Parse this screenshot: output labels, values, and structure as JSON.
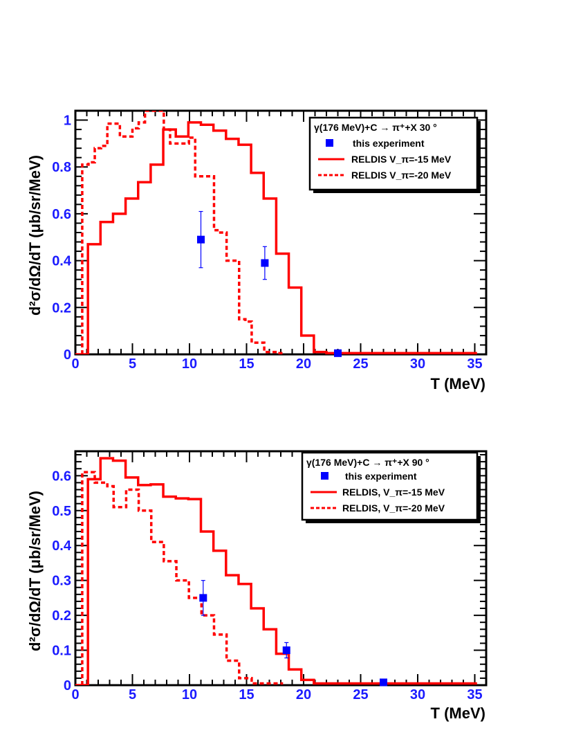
{
  "chart_data": [
    {
      "type": "line",
      "panel": "top",
      "xlabel": "T (MeV)",
      "ylabel": "d²σ/dΩ/dT (μb/sr/MeV)",
      "xlim": [
        0,
        36
      ],
      "ylim": [
        0,
        1.04
      ],
      "x_ticks": [
        "0",
        "5",
        "10",
        "15",
        "20",
        "25",
        "30",
        "35"
      ],
      "y_ticks": [
        "0",
        "0.2",
        "0.4",
        "0.6",
        "0.8",
        "1"
      ],
      "y_tick_values": [
        0,
        0.2,
        0.4,
        0.6,
        0.8,
        1
      ],
      "legend": {
        "title": "γ(176 MeV)+C → π⁺+X   30  °",
        "placement": "top-right",
        "entries": [
          "this experiment",
          "RELDIS V_π=-15 MeV",
          "RELDIS V_π=-20 MeV"
        ]
      },
      "series": [
        {
          "name": "RELDIS V_π=-15 MeV",
          "style": "solid",
          "color": "#ff0000",
          "bin_width": 1.1,
          "start": 0,
          "values": [
            0,
            0.47,
            0.565,
            0.6,
            0.665,
            0.735,
            0.81,
            0.96,
            0.93,
            0.99,
            0.98,
            0.955,
            0.92,
            0.895,
            0.775,
            0.665,
            0.43,
            0.285,
            0.08,
            0.01,
            0.005,
            0.005,
            0.005,
            0.005,
            0.005,
            0.005,
            0.005,
            0.005,
            0.005,
            0.005,
            0.005,
            0.005
          ]
        },
        {
          "name": "RELDIS V_π=-20 MeV",
          "style": "dashed",
          "color": "#ff0000",
          "bin_width": 0.55,
          "start": 0.6,
          "values": [
            0.81,
            0.82,
            0.88,
            0.89,
            0.985,
            0.985,
            0.93,
            0.93,
            0.965,
            0.99,
            1.04,
            1.04,
            1.04,
            0.96,
            0.9,
            0.9,
            0.9,
            0.925,
            0.76,
            0.76,
            0.76,
            0.53,
            0.52,
            0.4,
            0.4,
            0.15,
            0.14,
            0.05,
            0.05,
            0.01,
            0.01,
            0.005
          ]
        },
        {
          "name": "this experiment",
          "style": "marker",
          "color": "#0000ff",
          "x": [
            11.0,
            16.6,
            23.0
          ],
          "y": [
            0.49,
            0.39,
            0.005
          ],
          "err": [
            0.12,
            0.07,
            0.0
          ]
        }
      ]
    },
    {
      "type": "line",
      "panel": "bottom",
      "xlabel": "T (MeV)",
      "ylabel": "d²σ/dΩ/dT (μb/sr/MeV)",
      "xlim": [
        0,
        36
      ],
      "ylim": [
        0,
        0.67
      ],
      "x_ticks": [
        "0",
        "5",
        "10",
        "15",
        "20",
        "25",
        "30",
        "35"
      ],
      "y_ticks": [
        "0",
        "0.1",
        "0.2",
        "0.3",
        "0.4",
        "0.5",
        "0.6"
      ],
      "y_tick_values": [
        0,
        0.1,
        0.2,
        0.3,
        0.4,
        0.5,
        0.6
      ],
      "legend": {
        "title": "γ(176 MeV)+C → π⁺+X   90  °",
        "placement": "top-right",
        "entries": [
          "this experiment",
          "RELDIS, V_π=-15 MeV",
          "RELDIS, V_π=-20 MeV"
        ]
      },
      "series": [
        {
          "name": "RELDIS, V_π=-15 MeV",
          "style": "solid",
          "color": "#ff0000",
          "bin_width": 1.1,
          "start": 0,
          "values": [
            0,
            0.59,
            0.65,
            0.643,
            0.595,
            0.573,
            0.575,
            0.54,
            0.535,
            0.533,
            0.44,
            0.385,
            0.315,
            0.29,
            0.22,
            0.16,
            0.09,
            0.045,
            0.015,
            0.005,
            0.005,
            0.005,
            0.005,
            0.005,
            0.005,
            0.005,
            0.005,
            0.005,
            0.005,
            0.005,
            0.005,
            0.005
          ]
        },
        {
          "name": "RELDIS, V_π=-20 MeV",
          "style": "dashed",
          "color": "#ff0000",
          "bin_width": 0.55,
          "start": 0.6,
          "values": [
            0.61,
            0.61,
            0.58,
            0.58,
            0.57,
            0.51,
            0.51,
            0.56,
            0.56,
            0.5,
            0.5,
            0.41,
            0.41,
            0.355,
            0.355,
            0.3,
            0.3,
            0.25,
            0.25,
            0.2,
            0.2,
            0.145,
            0.145,
            0.07,
            0.07,
            0.02,
            0.02,
            0.005,
            0.005,
            0.005,
            0.005,
            0.005
          ]
        },
        {
          "name": "this experiment",
          "style": "marker",
          "color": "#0000ff",
          "x": [
            11.2,
            18.5,
            27.0
          ],
          "y": [
            0.25,
            0.1,
            0.008
          ],
          "err": [
            0.05,
            0.022,
            0.0
          ]
        }
      ]
    }
  ]
}
